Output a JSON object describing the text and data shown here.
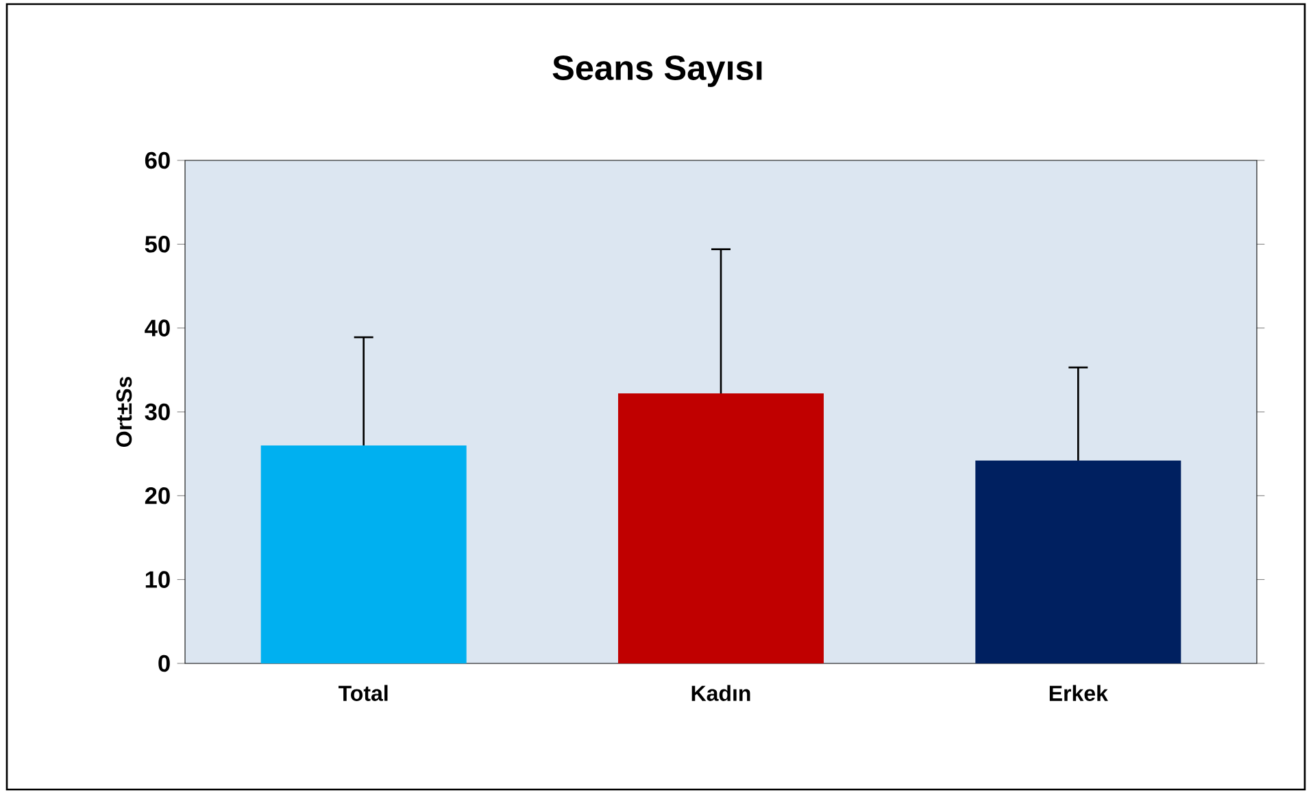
{
  "chart_data": {
    "type": "bar",
    "title": "Seans Sayısı",
    "ylabel": "Ort±Ss",
    "categories": [
      "Total",
      "Kadın",
      "Erkek"
    ],
    "values": [
      26.0,
      32.2,
      24.2
    ],
    "colors": [
      "#00b0f0",
      "#c00000",
      "#002060"
    ],
    "errors": [
      [
        26.0,
        38.9
      ],
      [
        32.2,
        49.4
      ],
      [
        24.2,
        35.3
      ]
    ],
    "ylim": [
      0,
      60
    ],
    "yticks": [
      0,
      10,
      20,
      30,
      40,
      50,
      60
    ],
    "grid": false
  }
}
